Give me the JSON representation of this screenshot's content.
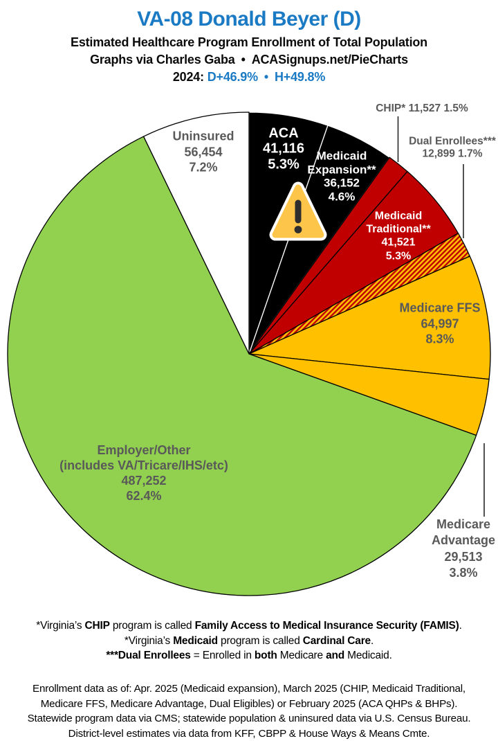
{
  "header": {
    "title": "VA-08 Donald Beyer (D)",
    "subtitle1": "Estimated Healthcare Program Enrollment of Total Population",
    "credit_left": "Graphs via Charles Gaba",
    "credit_sep": "•",
    "credit_right": "ACASignups.net/PieCharts",
    "year_label": "2024:",
    "lean_d": "D+46.9%",
    "lean_sep": "•",
    "lean_h": "H+49.8%"
  },
  "chart_data": {
    "type": "pie",
    "title": "Estimated Healthcare Program Enrollment of Total Population",
    "district": "VA-08",
    "representative": "Donald Beyer (D)",
    "direction": "clockwise",
    "start_angle_deg": 0,
    "colors": {
      "blue": "#1B7AC4",
      "red": "#C00000",
      "yellow": "#FFC000",
      "green": "#92D050",
      "black": "#000000",
      "white": "#FFFFFF",
      "label_gray": "#595959",
      "warning_amber": "#FDC64B",
      "warning_dark": "#2E2E2E"
    },
    "slices": [
      {
        "key": "aca",
        "label": "ACA",
        "value": 41116,
        "pct": 5.3,
        "color": "#000000",
        "stroke": "#ffffff",
        "hatch": false
      },
      {
        "key": "medicaid_expansion",
        "label": "Medicaid Expansion**",
        "value": 36152,
        "pct": 4.6,
        "color": "#000000",
        "stroke": "#ffffff",
        "hatch": false
      },
      {
        "key": "chip",
        "label": "CHIP*",
        "value": 11527,
        "pct": 1.5,
        "color": "#C00000",
        "stroke": "#000000",
        "hatch": false
      },
      {
        "key": "medicaid_traditional",
        "label": "Medicaid Traditional**",
        "value": 41521,
        "pct": 5.3,
        "color": "#C00000",
        "stroke": "#000000",
        "hatch": false
      },
      {
        "key": "dual_enrollees",
        "label": "Dual Enrollees***",
        "value": 12899,
        "pct": 1.7,
        "color": "#FFC000",
        "stroke": "#000000",
        "hatch": true
      },
      {
        "key": "medicare_ffs",
        "label": "Medicare FFS",
        "value": 64997,
        "pct": 8.3,
        "color": "#FFC000",
        "stroke": "#000000",
        "hatch": false
      },
      {
        "key": "medicare_advantage",
        "label": "Medicare Advantage",
        "value": 29513,
        "pct": 3.8,
        "color": "#FFC000",
        "stroke": "#000000",
        "hatch": false
      },
      {
        "key": "employer_other",
        "label": "Employer/Other (includes VA/Tricare/IHS/etc)",
        "value": 487252,
        "pct": 62.4,
        "color": "#92D050",
        "stroke": "#000000",
        "hatch": false
      },
      {
        "key": "uninsured",
        "label": "Uninsured",
        "value": 56454,
        "pct": 7.2,
        "color": "#FFFFFF",
        "stroke": "#000000",
        "hatch": false
      }
    ],
    "legend_position": "labels-on-slices"
  },
  "slice_labels": {
    "aca": {
      "l1": "ACA",
      "l2": "41,116",
      "l3": "5.3%"
    },
    "medicaid_expansion": {
      "l1": "Medicaid",
      "l2": "Expansion**",
      "l3": "36,152",
      "l4": "4.6%"
    },
    "chip": {
      "l1": "CHIP* 11,527 1.5%"
    },
    "dual": {
      "l1": "Dual Enrollees***",
      "l2": "12,899 1.7%"
    },
    "medicaid_traditional": {
      "l1": "Medicaid",
      "l2": "Traditional**",
      "l3": "41,521",
      "l4": "5.3%"
    },
    "medicare_ffs": {
      "l1": "Medicare FFS",
      "l2": "64,997",
      "l3": "8.3%"
    },
    "medicare_advantage": {
      "l1": "Medicare",
      "l2": "Advantage",
      "l3": "29,513",
      "l4": "3.8%"
    },
    "employer": {
      "l1": "Employer/Other",
      "l2": "(includes VA/Tricare/IHS/etc)",
      "l3": "487,252",
      "l4": "62.4%"
    },
    "uninsured": {
      "l1": "Uninsured",
      "l2": "56,454",
      "l3": "7.2%"
    }
  },
  "footnotes": {
    "line1": {
      "s0": "*Virginia’s ",
      "s1": "CHIP",
      "s2": " program is called ",
      "s3": "Family Access to Medical Insurance Security (FAMIS)",
      "s4": "."
    },
    "line2": {
      "s0": "*Virginia’s ",
      "s1": "Medicaid",
      "s2": " program is called ",
      "s3": "Cardinal Care",
      "s4": "."
    },
    "line3": {
      "s0": "***Dual Enrollees",
      "s1": " = Enrolled in ",
      "s2": "both",
      "s3": " Medicare ",
      "s4": "and",
      "s5": " Medicaid."
    }
  },
  "source": {
    "line1": "Enrollment data as of: Apr. 2025 (Medicaid expansion), March 2025 (CHIP, Medicaid Traditional,",
    "line2": "Medicare FFS, Medicare Advantage, Dual Eligibles) or February 2025 (ACA QHPs & BHPs).",
    "line3": "Statewide program data via CMS; statewide population & uninsured data via U.S. Census Bureau.",
    "line4": "District-level estimates via data from KFF, CBPP & House Ways & Means Cmte."
  }
}
